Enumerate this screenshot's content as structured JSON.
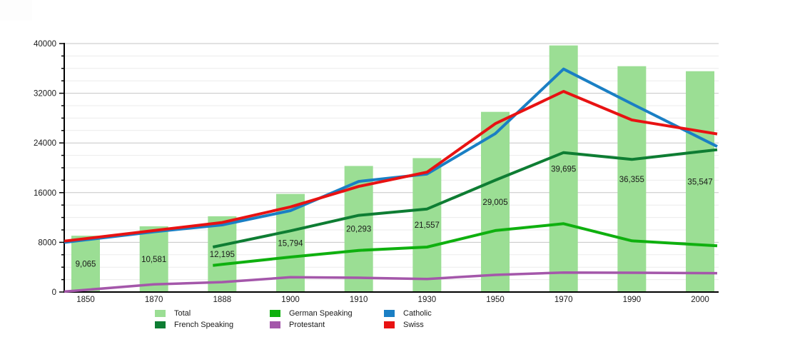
{
  "chart_data": {
    "type": "bar+line combo",
    "title": "",
    "xlabel": "",
    "ylabel": "",
    "ylim": [
      0,
      40000
    ],
    "yticks": [
      0,
      8000,
      16000,
      24000,
      32000,
      40000
    ],
    "ytick_labels": [
      "0",
      "8000",
      "16000",
      "24000",
      "32000",
      "40000"
    ],
    "minor_grid_step": 2000,
    "grid": true,
    "legend_position": "bottom",
    "categories": [
      "1850",
      "1870",
      "1888",
      "1900",
      "1910",
      "1930",
      "1950",
      "1970",
      "1990",
      "2000"
    ],
    "bar_series": {
      "name": "Total",
      "color": "#9bde94",
      "values": [
        9065,
        10581,
        12195,
        15794,
        20293,
        21557,
        29005,
        39695,
        36355,
        35547
      ],
      "labels": [
        "9,065",
        "10,581",
        "12,195",
        "15,794",
        "20,293",
        "21,557",
        "29,005",
        "39,695",
        "36,355",
        "35,547"
      ]
    },
    "line_series": [
      {
        "name": "Protestant",
        "color": "#a457aa",
        "values": [
          350,
          1230,
          1600,
          2380,
          2300,
          2100,
          2760,
          3140,
          3100,
          3050
        ]
      },
      {
        "name": "German Speaking",
        "color": "#0fb00f",
        "values": [
          null,
          null,
          4450,
          5630,
          6700,
          7240,
          9900,
          11000,
          8240,
          7600
        ]
      },
      {
        "name": "French Speaking",
        "color": "#0e7d33",
        "values": [
          null,
          null,
          7550,
          9850,
          12340,
          13370,
          18000,
          22450,
          21350,
          22600
        ]
      },
      {
        "name": "Catholic",
        "color": "#1a7fc4",
        "values": [
          8400,
          9700,
          10800,
          13100,
          17800,
          19000,
          25500,
          35900,
          30300,
          24800
        ]
      },
      {
        "name": "Swiss",
        "color": "#e81212",
        "values": [
          8600,
          9900,
          11200,
          13700,
          17000,
          19300,
          27100,
          32300,
          27700,
          25900
        ]
      }
    ],
    "legend_rows": [
      [
        "Total",
        "German Speaking",
        "Catholic"
      ],
      [
        "French Speaking",
        "Protestant",
        "Swiss"
      ]
    ],
    "colors": {
      "bar_fill": "#9bde94",
      "major_grid": "#c6c6c6",
      "minor_grid": "#ebebeb",
      "axis": "#000000",
      "text": "#1a1a1a"
    }
  }
}
